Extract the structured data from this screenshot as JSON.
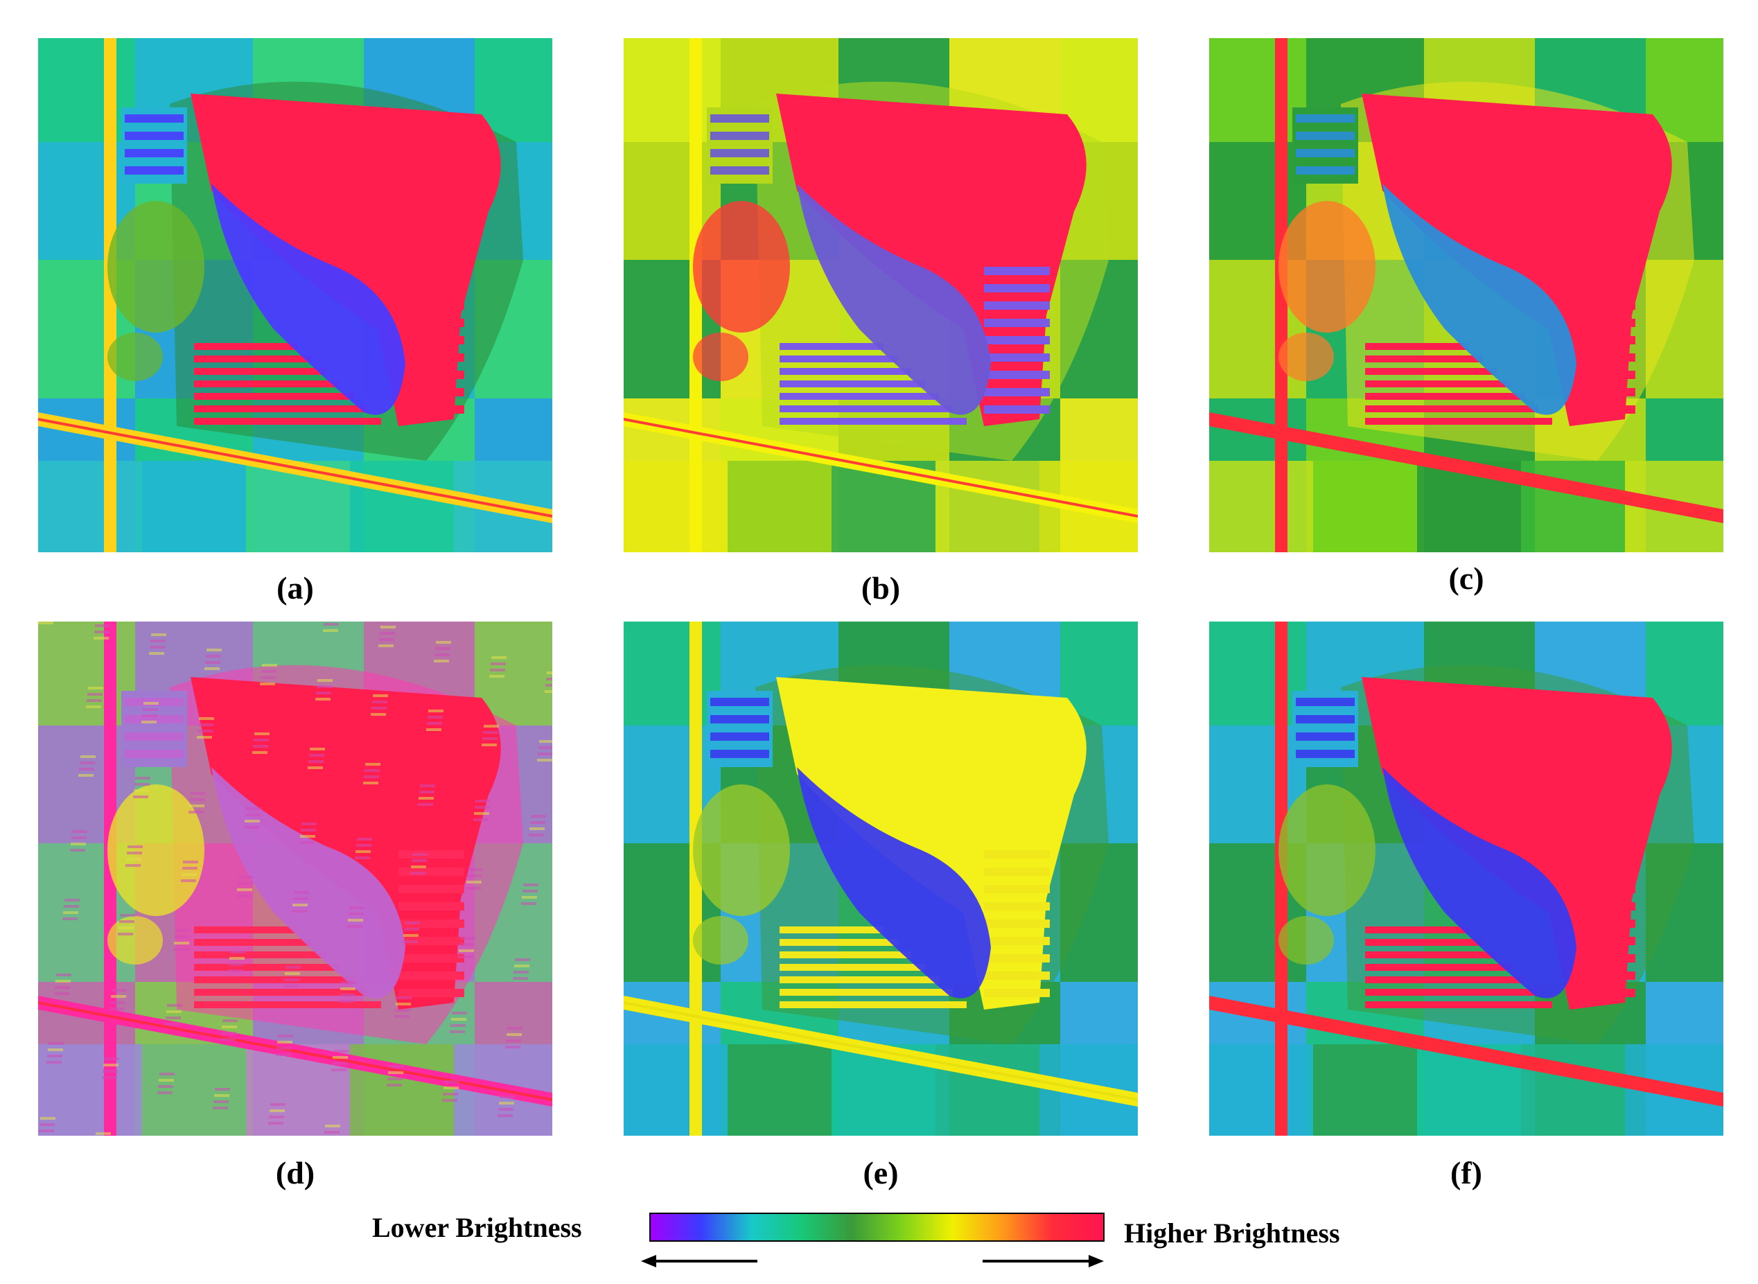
{
  "panels": [
    {
      "label": "(a)",
      "style": "smooth"
    },
    {
      "label": "(b)",
      "style": "textured"
    },
    {
      "label": "(c)",
      "style": "warm"
    },
    {
      "label": "(d)",
      "style": "noisy"
    },
    {
      "label": "(e)",
      "style": "yellow-pond"
    },
    {
      "label": "(f)",
      "style": "red-pond"
    }
  ],
  "legend": {
    "low_label": "Lower Brightness",
    "high_label": "Higher Brightness",
    "gradient_colors": [
      "#a200ff",
      "#3b3bff",
      "#19c8c8",
      "#18c879",
      "#3a9a3a",
      "#7fd21a",
      "#f0f000",
      "#ff9a1a",
      "#ff2b3a",
      "#ff1550"
    ]
  }
}
